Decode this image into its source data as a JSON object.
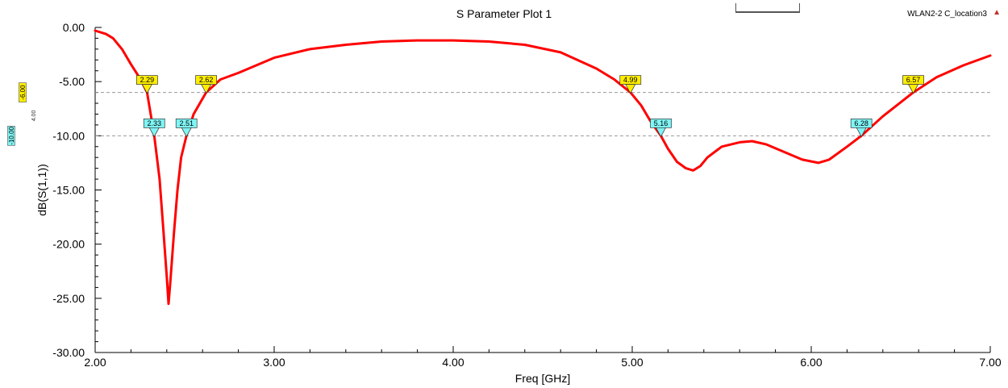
{
  "chart_data": {
    "type": "line",
    "title": "S Parameter Plot 1",
    "design_label": "WLAN2-2 C_location3",
    "xlabel": "Freq [GHz]",
    "ylabel": "dB(S(1,1))",
    "xlim": [
      2.0,
      7.0
    ],
    "ylim": [
      -30.0,
      0.0
    ],
    "x_ticks": [
      "2.00",
      "3.00",
      "4.00",
      "5.00",
      "6.00",
      "7.00"
    ],
    "y_ticks": [
      "0.00",
      "-5.00",
      "-10.00",
      "-15.00",
      "-20.00",
      "-25.00",
      "-30.00"
    ],
    "grid": false,
    "series": [
      {
        "color": "#ff0000",
        "x": [
          2.0,
          2.06,
          2.1,
          2.15,
          2.2,
          2.25,
          2.29,
          2.33,
          2.36,
          2.38,
          2.4,
          2.41,
          2.42,
          2.44,
          2.46,
          2.48,
          2.51,
          2.55,
          2.62,
          2.7,
          2.8,
          2.9,
          3.0,
          3.2,
          3.4,
          3.6,
          3.8,
          4.0,
          4.2,
          4.4,
          4.6,
          4.8,
          4.9,
          4.99,
          5.05,
          5.1,
          5.16,
          5.2,
          5.25,
          5.3,
          5.34,
          5.38,
          5.42,
          5.5,
          5.6,
          5.67,
          5.75,
          5.85,
          5.95,
          6.04,
          6.1,
          6.2,
          6.28,
          6.4,
          6.57,
          6.7,
          6.85,
          7.0
        ],
        "y": [
          -0.3,
          -0.6,
          -1.0,
          -2.0,
          -3.4,
          -4.7,
          -6.0,
          -10.0,
          -14.0,
          -18.5,
          -23.0,
          -25.5,
          -23.5,
          -19.0,
          -15.0,
          -12.0,
          -10.0,
          -8.0,
          -6.0,
          -4.8,
          -4.2,
          -3.5,
          -2.8,
          -2.0,
          -1.6,
          -1.3,
          -1.2,
          -1.2,
          -1.3,
          -1.6,
          -2.3,
          -3.8,
          -4.8,
          -6.0,
          -7.2,
          -8.6,
          -10.0,
          -11.2,
          -12.4,
          -13.0,
          -13.2,
          -12.8,
          -12.0,
          -11.0,
          -10.6,
          -10.5,
          -10.8,
          -11.5,
          -12.2,
          -12.5,
          -12.2,
          -11.0,
          -10.0,
          -8.2,
          -6.0,
          -4.6,
          -3.5,
          -2.6
        ]
      }
    ],
    "hlines": [
      {
        "y": -6.0,
        "label": "-6.00",
        "color": "#ffee00"
      },
      {
        "y": -10.0,
        "label": "-10.00",
        "color": "#7ff5f5"
      }
    ],
    "axis_side_label": "4.00",
    "markers": [
      {
        "x": 2.29,
        "y": -6.0,
        "label": "2.29",
        "color": "#ffee00"
      },
      {
        "x": 2.62,
        "y": -6.0,
        "label": "2.62",
        "color": "#ffee00"
      },
      {
        "x": 4.99,
        "y": -6.0,
        "label": "4.99",
        "color": "#ffee00"
      },
      {
        "x": 6.57,
        "y": -6.0,
        "label": "6.57",
        "color": "#ffee00"
      },
      {
        "x": 2.33,
        "y": -10.0,
        "label": "2.33",
        "color": "#7ff5f5"
      },
      {
        "x": 2.51,
        "y": -10.0,
        "label": "2.51",
        "color": "#7ff5f5"
      },
      {
        "x": 5.16,
        "y": -10.0,
        "label": "5.16",
        "color": "#7ff5f5"
      },
      {
        "x": 6.28,
        "y": -10.0,
        "label": "6.28",
        "color": "#7ff5f5"
      }
    ]
  }
}
